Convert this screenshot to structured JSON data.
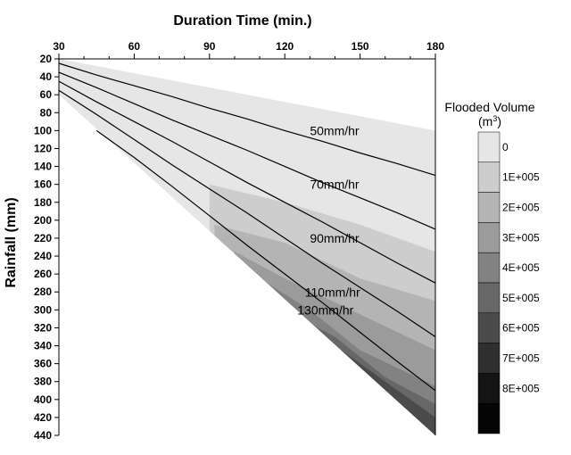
{
  "chart_data": {
    "type": "contour",
    "xlabel": "Duration Time (min.)",
    "ylabel": "Rainfall (mm)",
    "xlim": [
      30,
      180
    ],
    "ylim": [
      20,
      440
    ],
    "y_inverted": true,
    "x_axis_position": "top",
    "x_ticks": [
      30,
      60,
      90,
      120,
      150,
      180
    ],
    "y_ticks": [
      20,
      40,
      60,
      80,
      100,
      120,
      140,
      160,
      180,
      200,
      220,
      240,
      260,
      280,
      300,
      320,
      340,
      360,
      380,
      400,
      420,
      440
    ],
    "grid": false,
    "legend": {
      "title": "Flooded Volume",
      "unit_prefix": "(m",
      "unit_superscript": "3",
      "unit_suffix": ")",
      "placement": "right",
      "levels": [
        "0",
        "1E+005",
        "2E+005",
        "3E+005",
        "4E+005",
        "5E+005",
        "6E+005",
        "7E+005",
        "8E+005"
      ],
      "colors": [
        "#e6e6e6",
        "#cdcdcd",
        "#b4b4b4",
        "#9b9b9b",
        "#828282",
        "#676767",
        "#4b4b4b",
        "#2f2f2f",
        "#141414",
        "#050505"
      ]
    },
    "data_region_upper_edge": [
      [
        30,
        20
      ],
      [
        180,
        100
      ]
    ],
    "data_region_lower_edge": [
      [
        30,
        60
      ],
      [
        180,
        440
      ]
    ],
    "filled_bands": [
      {
        "level": "1E+005",
        "upper_edge": [
          [
            90,
            160
          ],
          [
            120,
            180
          ],
          [
            150,
            205
          ],
          [
            180,
            235
          ]
        ]
      },
      {
        "level": "2E+005",
        "upper_edge": [
          [
            92,
            205
          ],
          [
            120,
            225
          ],
          [
            150,
            265
          ],
          [
            180,
            290
          ]
        ]
      },
      {
        "level": "3E+005",
        "upper_edge": [
          [
            100,
            235
          ],
          [
            120,
            265
          ],
          [
            150,
            305
          ],
          [
            180,
            345
          ]
        ]
      },
      {
        "level": "4E+005",
        "upper_edge": [
          [
            110,
            265
          ],
          [
            130,
            300
          ],
          [
            150,
            345
          ],
          [
            180,
            385
          ]
        ]
      },
      {
        "level": "5E+005",
        "upper_edge": [
          [
            120,
            300
          ],
          [
            140,
            330
          ],
          [
            160,
            375
          ],
          [
            180,
            405
          ]
        ]
      },
      {
        "level": "6E+005",
        "upper_edge": [
          [
            130,
            320
          ],
          [
            150,
            360
          ],
          [
            170,
            400
          ],
          [
            180,
            420
          ]
        ]
      }
    ],
    "series": [
      {
        "name": "50mm/hr",
        "x": [
          30,
          45,
          60,
          75,
          90,
          105,
          120,
          135,
          150,
          165,
          180
        ],
        "y": [
          25,
          38,
          50,
          62,
          75,
          87,
          100,
          112,
          125,
          137,
          150
        ]
      },
      {
        "name": "70mm/hr",
        "x": [
          30,
          45,
          60,
          75,
          90,
          105,
          120,
          135,
          150,
          165,
          180
        ],
        "y": [
          35,
          52,
          70,
          88,
          105,
          122,
          140,
          158,
          175,
          192,
          210
        ]
      },
      {
        "name": "90mm/hr",
        "x": [
          30,
          45,
          60,
          75,
          90,
          105,
          120,
          135,
          150,
          165,
          180
        ],
        "y": [
          45,
          68,
          90,
          112,
          135,
          158,
          180,
          202,
          225,
          248,
          270
        ]
      },
      {
        "name": "110mm/hr",
        "x": [
          30,
          45,
          60,
          75,
          90,
          105,
          120,
          135,
          150,
          165,
          180
        ],
        "y": [
          55,
          82,
          110,
          138,
          165,
          192,
          220,
          248,
          275,
          302,
          330
        ]
      },
      {
        "name": "130mm/hr",
        "x": [
          45,
          60,
          75,
          90,
          105,
          120,
          135,
          150,
          165,
          180
        ],
        "y": [
          100,
          130,
          162,
          195,
          228,
          260,
          292,
          325,
          358,
          390
        ]
      }
    ],
    "annotations": [
      {
        "text": "50mm/hr",
        "x": 130,
        "y": 105
      },
      {
        "text": "70mm/hr",
        "x": 130,
        "y": 165
      },
      {
        "text": "90mm/hr",
        "x": 130,
        "y": 225
      },
      {
        "text": "110mm/hr",
        "x": 128,
        "y": 285
      },
      {
        "text": "130mm/hr",
        "x": 125,
        "y": 305
      }
    ]
  }
}
